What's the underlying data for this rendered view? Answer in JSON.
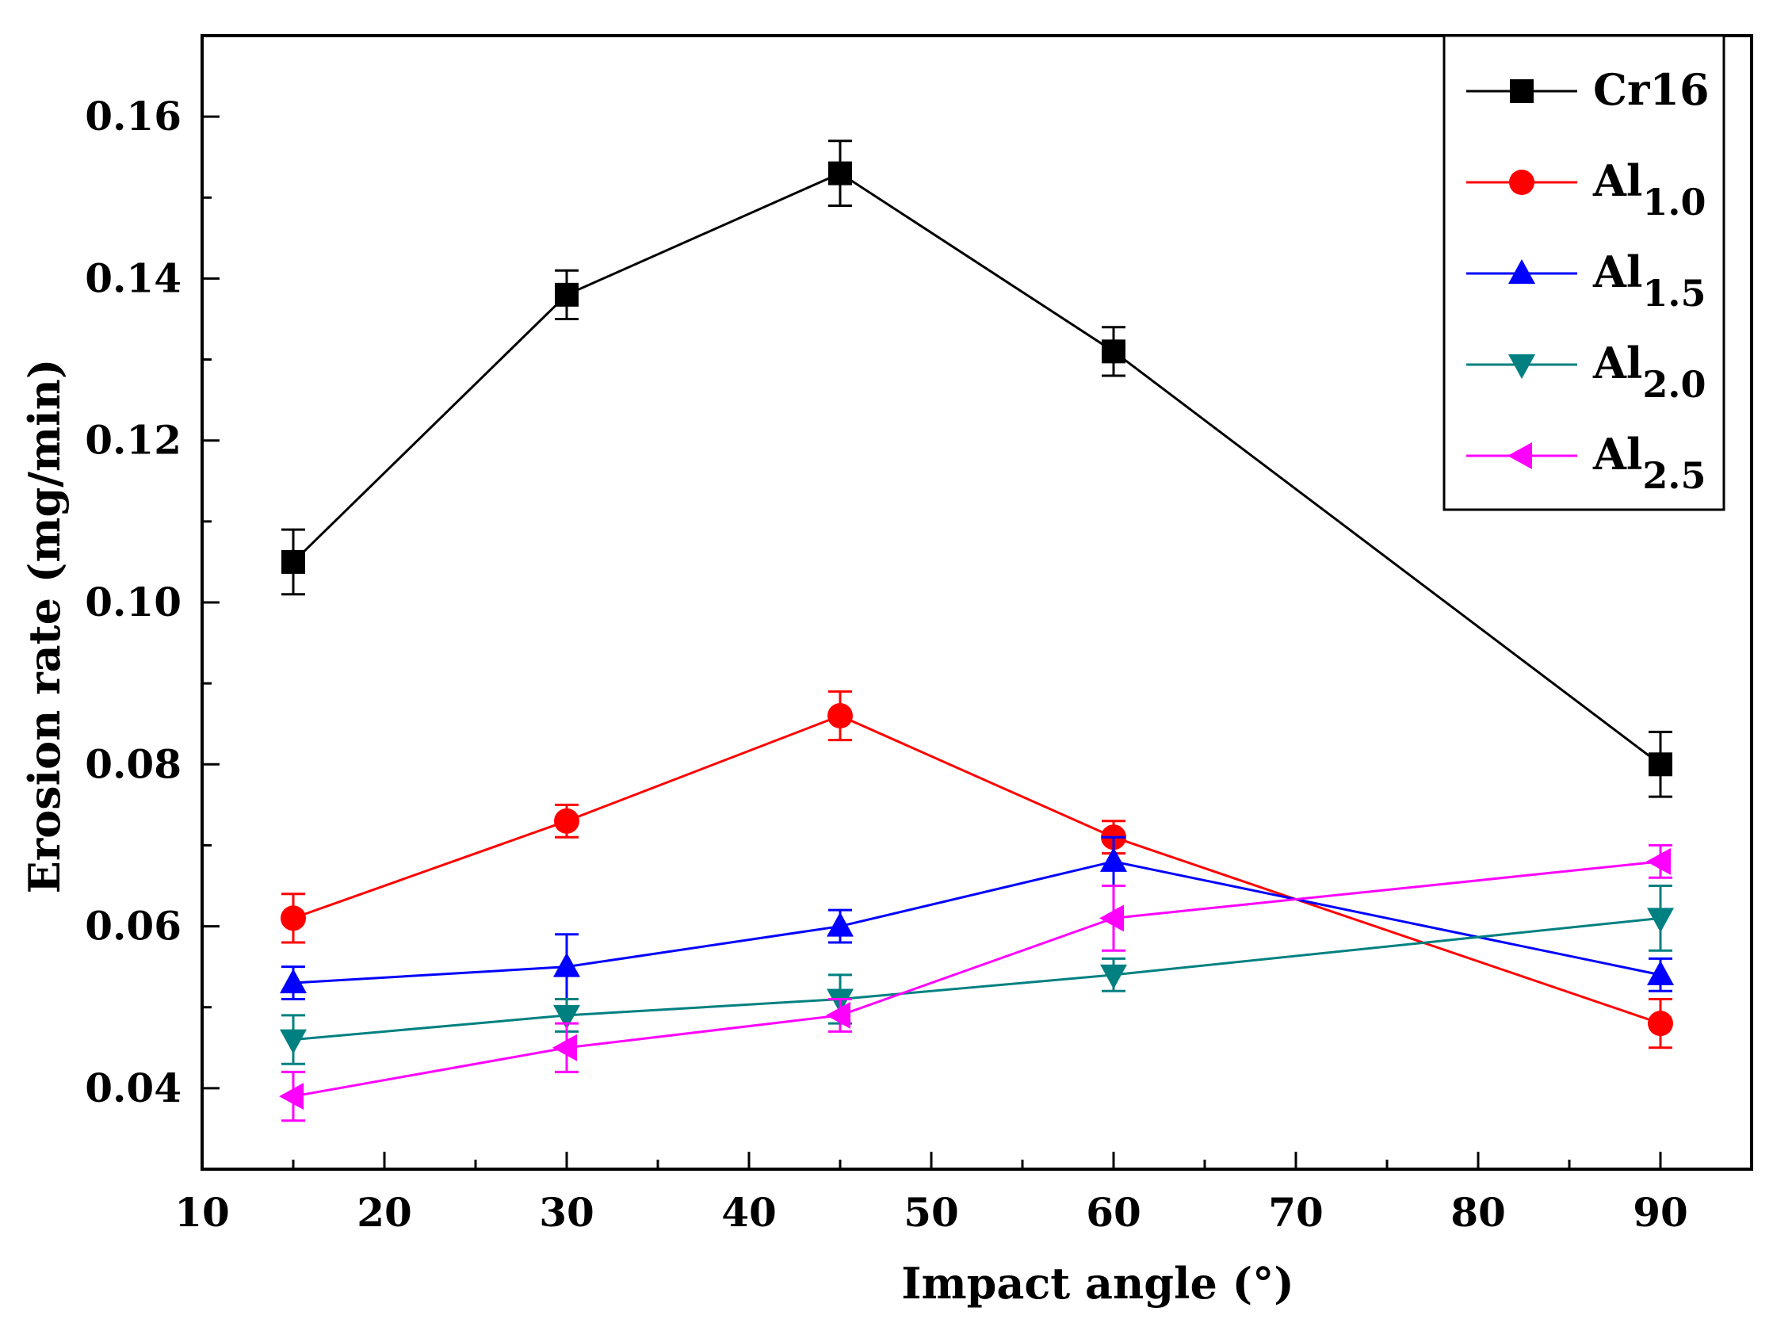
{
  "chart_data": {
    "type": "line",
    "title": "",
    "xlabel": "Impact angle (°)",
    "ylabel": "Erosion rate (mg/min)",
    "xlim": [
      10,
      95
    ],
    "ylim": [
      0.03,
      0.17
    ],
    "x_ticks": [
      10,
      20,
      30,
      40,
      50,
      60,
      70,
      80,
      90
    ],
    "x_tick_labels": [
      "10",
      "20",
      "30",
      "40",
      "50",
      "60",
      "70",
      "80",
      "90"
    ],
    "y_ticks": [
      0.04,
      0.06,
      0.08,
      0.1,
      0.12,
      0.14,
      0.16
    ],
    "y_tick_labels": [
      "0.04",
      "0.06",
      "0.08",
      "0.10",
      "0.12",
      "0.14",
      "0.16"
    ],
    "x": [
      15,
      30,
      45,
      60,
      90
    ],
    "legend_position": "top-right",
    "grid": false,
    "series": [
      {
        "name": "Cr16",
        "label_main": "Cr16",
        "label_sub": "",
        "color": "#000000",
        "marker": "square",
        "values": [
          0.105,
          0.138,
          0.153,
          0.131,
          0.08
        ],
        "errors": [
          0.004,
          0.003,
          0.004,
          0.003,
          0.004
        ]
      },
      {
        "name": "Al1.0",
        "label_main": "Al",
        "label_sub": "1.0",
        "color": "#ff0000",
        "marker": "circle",
        "values": [
          0.061,
          0.073,
          0.086,
          0.071,
          0.048
        ],
        "errors": [
          0.003,
          0.002,
          0.003,
          0.002,
          0.003
        ]
      },
      {
        "name": "Al1.5",
        "label_main": "Al",
        "label_sub": "1.5",
        "color": "#0000ff",
        "marker": "triangle-up",
        "values": [
          0.053,
          0.055,
          0.06,
          0.068,
          0.054
        ],
        "errors": [
          0.002,
          0.004,
          0.002,
          0.003,
          0.002
        ]
      },
      {
        "name": "Al2.0",
        "label_main": "Al",
        "label_sub": "2.0",
        "color": "#008080",
        "marker": "triangle-down",
        "values": [
          0.046,
          0.049,
          0.051,
          0.054,
          0.061
        ],
        "errors": [
          0.003,
          0.002,
          0.003,
          0.002,
          0.004
        ]
      },
      {
        "name": "Al2.5",
        "label_main": "Al",
        "label_sub": "2.5",
        "color": "#ff00ff",
        "marker": "triangle-left",
        "values": [
          0.039,
          0.045,
          0.049,
          0.061,
          0.068
        ],
        "errors": [
          0.003,
          0.003,
          0.002,
          0.004,
          0.002
        ]
      }
    ]
  }
}
